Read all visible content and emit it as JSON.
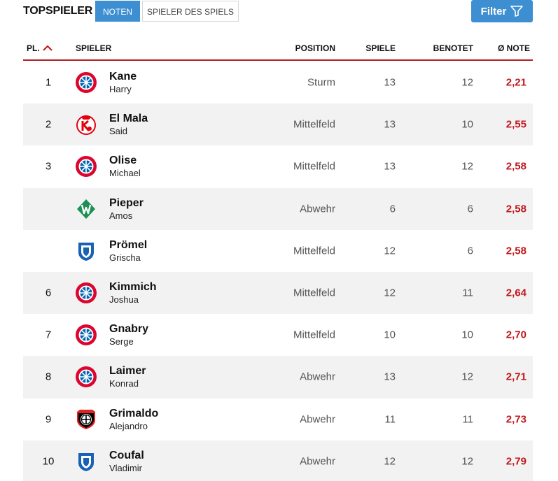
{
  "header": {
    "title": "TOPSPIELER",
    "tabs": [
      {
        "label": "NOTEN",
        "active": true
      },
      {
        "label": "SPIELER DES SPIELS",
        "active": false
      }
    ],
    "filter_label": "Filter"
  },
  "columns": {
    "pl": "PL.",
    "spieler": "SPIELER",
    "position": "POSITION",
    "spiele": "SPIELE",
    "benotet": "BENOTET",
    "note": "Ø NOTE"
  },
  "colors": {
    "accent_blue": "#3d8fd2",
    "note_red": "#c2161b",
    "header_rule": "#b31f1f"
  },
  "rows": [
    {
      "rank": "1",
      "last": "Kane",
      "first": "Harry",
      "position": "Sturm",
      "spiele": "13",
      "benotet": "12",
      "note": "2,21",
      "club_icon": "fc-bayern-logo-icon"
    },
    {
      "rank": "2",
      "last": "El Mala",
      "first": "Said",
      "position": "Mittelfeld",
      "spiele": "13",
      "benotet": "10",
      "note": "2,55",
      "club_icon": "fc-koeln-logo-icon"
    },
    {
      "rank": "3",
      "last": "Olise",
      "first": "Michael",
      "position": "Mittelfeld",
      "spiele": "13",
      "benotet": "12",
      "note": "2,58",
      "club_icon": "fc-bayern-logo-icon"
    },
    {
      "rank": "",
      "last": "Pieper",
      "first": "Amos",
      "position": "Abwehr",
      "spiele": "6",
      "benotet": "6",
      "note": "2,58",
      "club_icon": "werder-bremen-logo-icon"
    },
    {
      "rank": "",
      "last": "Prömel",
      "first": "Grischa",
      "position": "Mittelfeld",
      "spiele": "12",
      "benotet": "6",
      "note": "2,58",
      "club_icon": "tsg-hoffenheim-logo-icon"
    },
    {
      "rank": "6",
      "last": "Kimmich",
      "first": "Joshua",
      "position": "Mittelfeld",
      "spiele": "12",
      "benotet": "11",
      "note": "2,64",
      "club_icon": "fc-bayern-logo-icon"
    },
    {
      "rank": "7",
      "last": "Gnabry",
      "first": "Serge",
      "position": "Mittelfeld",
      "spiele": "10",
      "benotet": "10",
      "note": "2,70",
      "club_icon": "fc-bayern-logo-icon"
    },
    {
      "rank": "8",
      "last": "Laimer",
      "first": "Konrad",
      "position": "Abwehr",
      "spiele": "13",
      "benotet": "12",
      "note": "2,71",
      "club_icon": "fc-bayern-logo-icon"
    },
    {
      "rank": "9",
      "last": "Grimaldo",
      "first": "Alejandro",
      "position": "Abwehr",
      "spiele": "11",
      "benotet": "11",
      "note": "2,73",
      "club_icon": "bayer-leverkusen-logo-icon"
    },
    {
      "rank": "10",
      "last": "Coufal",
      "first": "Vladimir",
      "position": "Abwehr",
      "spiele": "12",
      "benotet": "12",
      "note": "2,79",
      "club_icon": "tsg-hoffenheim-logo-icon"
    }
  ]
}
